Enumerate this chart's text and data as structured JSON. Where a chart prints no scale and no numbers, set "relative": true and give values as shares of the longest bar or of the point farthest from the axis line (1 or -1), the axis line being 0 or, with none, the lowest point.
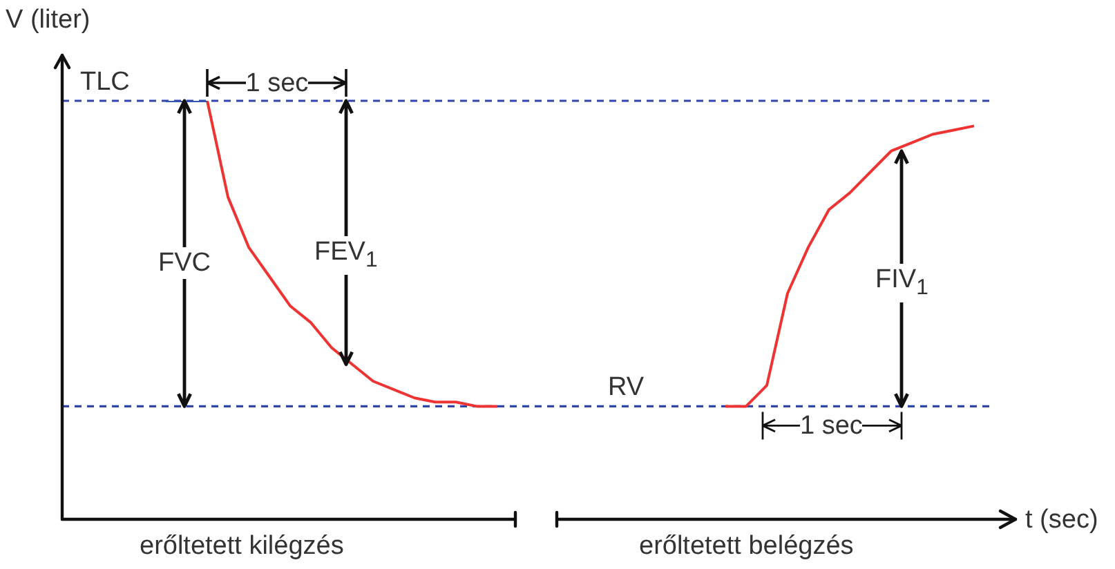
{
  "chart_data": {
    "type": "line",
    "relative": true,
    "ylabel": "V (liter)",
    "xlabel": "t (sec)",
    "categories": [
      null,
      null,
      null,
      null,
      null,
      null,
      null,
      null,
      null,
      null,
      null,
      null,
      null,
      null,
      null,
      null,
      null,
      null,
      null,
      null,
      null,
      null,
      null,
      null,
      null,
      null,
      null,
      null,
      null,
      null,
      null,
      null,
      null,
      null,
      null,
      null,
      null,
      null,
      null,
      null,
      null,
      null,
      null,
      null,
      null,
      null
    ],
    "series": [
      {
        "color": "#3355bb",
        "values": [
          null,
          null,
          null,
          null,
          null,
          1,
          1,
          1,
          null,
          null,
          null,
          null,
          null,
          null,
          null,
          null,
          null,
          null,
          null,
          null,
          null,
          null,
          null,
          null,
          null,
          null,
          null,
          null,
          null,
          null,
          null,
          null,
          null,
          null,
          null,
          null,
          null,
          null,
          null,
          null,
          null,
          null,
          null,
          null,
          null,
          null
        ]
      },
      {
        "color": "#ee3333",
        "values": [
          null,
          null,
          null,
          null,
          null,
          null,
          null,
          1,
          0.77,
          0.65,
          0.58,
          0.51,
          0.47,
          0.41,
          0.37,
          0.33,
          0.31,
          0.29,
          0.28,
          0.28,
          0.27,
          0.27,
          null,
          null,
          null,
          null,
          null,
          null,
          null,
          null,
          null,
          null,
          0.27,
          0.27,
          0.32,
          0.54,
          0.65,
          0.74,
          0.78,
          0.83,
          0.88,
          0.9,
          0.92,
          0.93,
          0.94,
          null
        ]
      }
    ],
    "ref_lines": [
      {
        "axis": "y",
        "value": 1,
        "label": "TLC",
        "color": "#3344aa",
        "line_style": "dashed"
      },
      {
        "axis": "y",
        "value": 0.27,
        "label": "RV",
        "color": "#3344aa",
        "line_style": "dashed"
      }
    ],
    "annotations": [
      "FVC",
      "FEV$_{1}$",
      "FIV$_{1}$",
      "1 sec",
      "1 sec",
      "erőltetett kilégzés",
      "erőltetett belégzés"
    ]
  }
}
